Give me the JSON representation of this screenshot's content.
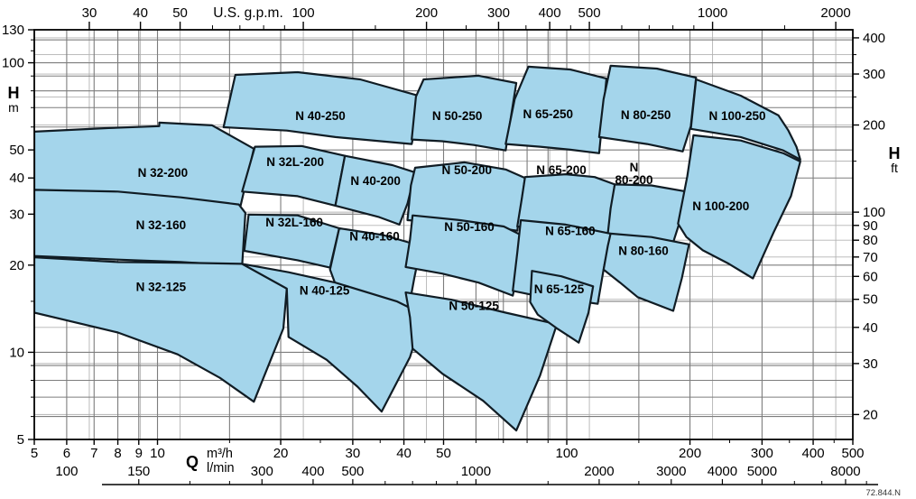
{
  "chart_data": {
    "type": "area",
    "title": "",
    "footnote": "72.844.N",
    "x_scale": {
      "type": "log",
      "unit": "m3/h",
      "min": 5,
      "max": 500
    },
    "y_scale": {
      "type": "log",
      "unit": "m",
      "min": 5,
      "max": 130
    },
    "axes": {
      "top": {
        "label": "U.S. g.p.m.",
        "gpm_per_m3h": 4.40287,
        "labeled_ticks": [
          30,
          40,
          50,
          100,
          200,
          300,
          400,
          500,
          1000,
          2000
        ],
        "minor_ticks": [
          60,
          70,
          80,
          90,
          150,
          250,
          350,
          450,
          600,
          700,
          800,
          900,
          1500
        ]
      },
      "left": {
        "label": "H",
        "sublabel": "m",
        "labeled_ticks": [
          130,
          100,
          50,
          40,
          30,
          20,
          10,
          5
        ],
        "minor_ticks": [
          120,
          110,
          90,
          80,
          70,
          60,
          15,
          9,
          8,
          7,
          6
        ]
      },
      "right": {
        "label": "H",
        "sublabel": "ft",
        "m_per_ft": 0.3048,
        "labeled_ticks": [
          400,
          300,
          200,
          100,
          90,
          80,
          70,
          60,
          50,
          40,
          30,
          20
        ],
        "minor_ticks": [
          350,
          250,
          150
        ]
      },
      "bottom": {
        "label": "Q",
        "unit_line1": "m³/h",
        "unit_line2": "l/min",
        "labeled_ticks": [
          5,
          6,
          7,
          8,
          9,
          10,
          20,
          30,
          40,
          50,
          100,
          200,
          300,
          400,
          500
        ],
        "minor_ticks": [
          15,
          25,
          35,
          45,
          60,
          70,
          80,
          90,
          150,
          250,
          350,
          450
        ]
      },
      "bottom_lmin": {
        "lmin_per_m3h": 16.6667,
        "labeled_ticks": [
          100,
          150,
          300,
          400,
          500,
          1000,
          2000,
          3000,
          4000,
          5000,
          8000
        ],
        "minor_ticks": [
          200,
          250,
          600,
          700,
          800,
          900,
          1500,
          2500,
          6000,
          7000,
          9000
        ]
      }
    },
    "grid": {
      "verticals_m3h": [
        6,
        7,
        8,
        9,
        10,
        15,
        20,
        30,
        40,
        50,
        60,
        70,
        80,
        90,
        100,
        150,
        200,
        300,
        400
      ],
      "verticals_gpm": [
        30,
        40,
        50,
        100,
        200,
        300,
        400,
        500,
        1000,
        2000
      ],
      "horizontals_m": [
        6,
        7,
        8,
        9,
        10,
        15,
        20,
        30,
        40,
        50,
        60,
        70,
        80,
        90,
        100,
        120
      ],
      "horizontals_ft": [
        20,
        30,
        40,
        50,
        60,
        70,
        80,
        90,
        100,
        150,
        200,
        250,
        300,
        350,
        400
      ]
    },
    "colors": {
      "region_fill": "#a4d5eb",
      "region_stroke": "#101c24",
      "grid_major": "#7d7d7d",
      "grid_minor": "#b3b3b3",
      "frame": "#000000",
      "text": "#000000"
    },
    "regions": [
      {
        "label": "N 40-250",
        "label_at": [
          25,
          65.8
        ],
        "poly": [
          [
            14.5,
            59.9
          ],
          [
            15.5,
            90.8
          ],
          [
            22,
            92.8
          ],
          [
            31.3,
            87.6
          ],
          [
            44.2,
            76.4
          ],
          [
            41.8,
            52.4
          ],
          [
            27.2,
            55.4
          ],
          [
            20.7,
            58.3
          ]
        ]
      },
      {
        "label": "N 50-250",
        "label_at": [
          54,
          65.8
        ],
        "poly": [
          [
            41.8,
            54.3
          ],
          [
            42.8,
            76.4
          ],
          [
            44.7,
            87.6
          ],
          [
            60.9,
            90.2
          ],
          [
            75.3,
            85.1
          ],
          [
            70.9,
            49.8
          ],
          [
            59.3,
            52
          ],
          [
            49.6,
            53.6
          ]
        ]
      },
      {
        "label": "N 65-250",
        "label_at": [
          90,
          66.8
        ],
        "poly": [
          [
            70.9,
            52.4
          ],
          [
            74.6,
            74.8
          ],
          [
            80.6,
            96.9
          ],
          [
            102,
            94.8
          ],
          [
            125,
            88.2
          ],
          [
            120,
            48.7
          ],
          [
            102,
            50.1
          ],
          [
            86.1,
            51.3
          ]
        ]
      },
      {
        "label": "N 80-250",
        "label_at": [
          156,
          66.3
        ],
        "poly": [
          [
            120,
            55.4
          ],
          [
            123,
            74.8
          ],
          [
            128,
            97.6
          ],
          [
            166,
            95.5
          ],
          [
            207,
            88.9
          ],
          [
            201,
            60.4
          ],
          [
            192,
            49.4
          ],
          [
            157,
            52.4
          ],
          [
            137,
            53.9
          ]
        ]
      },
      {
        "label": "N 100-250",
        "label_at": [
          261,
          65.8
        ],
        "poly": [
          [
            201,
            59.1
          ],
          [
            207,
            87.6
          ],
          [
            266,
            77
          ],
          [
            329,
            65.8
          ],
          [
            348,
            58.3
          ],
          [
            364,
            51.3
          ],
          [
            372,
            46.3
          ],
          [
            338,
            49.8
          ],
          [
            266,
            55.4
          ]
        ]
      },
      {
        "label": "N 32-200",
        "label_at": [
          10.3,
          41.8
        ],
        "poly": [
          [
            5,
            57.8
          ],
          [
            7.6,
            59.5
          ],
          [
            10.1,
            60.4
          ],
          [
            10.1,
            62.1
          ],
          [
            13.6,
            60.8
          ],
          [
            17.2,
            50.5
          ],
          [
            15.9,
            31.4
          ],
          [
            11.4,
            33.3
          ],
          [
            8,
            34.8
          ],
          [
            5,
            35.4
          ]
        ]
      },
      {
        "label": "N 32L-200",
        "label_at": [
          21.7,
          45.6
        ],
        "poly": [
          [
            16.1,
            35.9
          ],
          [
            17.3,
            51.3
          ],
          [
            22.5,
            51.6
          ],
          [
            28.7,
            47.7
          ],
          [
            27.2,
            32.1
          ],
          [
            22,
            34.6
          ]
        ]
      },
      {
        "label": "N 40-200",
        "label_at": [
          34.1,
          39.2
        ],
        "poly": [
          [
            27.2,
            32.1
          ],
          [
            28.7,
            47.7
          ],
          [
            37.5,
            44.3
          ],
          [
            42.6,
            41.8
          ],
          [
            40.8,
            32.6
          ],
          [
            39,
            27.6
          ],
          [
            34.8,
            29.3
          ]
        ]
      },
      {
        "label": "N 50-200",
        "label_at": [
          57,
          42.8
        ],
        "poly": [
          [
            40.8,
            28.6
          ],
          [
            41.6,
            37.7
          ],
          [
            42.6,
            43.4
          ],
          [
            56.3,
            45.3
          ],
          [
            70.9,
            42.8
          ],
          [
            79.1,
            40
          ],
          [
            75.7,
            26.3
          ],
          [
            64.1,
            27.2
          ],
          [
            52.2,
            28
          ]
        ]
      },
      {
        "label": "N 65-200",
        "label_at": [
          97,
          42.8
        ],
        "poly": [
          [
            75.7,
            27.2
          ],
          [
            77.6,
            33.8
          ],
          [
            79.1,
            40.3
          ],
          [
            99.4,
            41.2
          ],
          [
            117,
            40.3
          ],
          [
            131,
            38
          ],
          [
            126,
            25
          ],
          [
            104,
            25.9
          ],
          [
            88.3,
            26.6
          ]
        ]
      },
      {
        "label": "N 80-200",
        "label_at": [
          146,
          41.5
        ],
        "two_line": true,
        "poly": [
          [
            126,
            25.7
          ],
          [
            128,
            31.4
          ],
          [
            131,
            38
          ],
          [
            161,
            37.7
          ],
          [
            196,
            35.9
          ],
          [
            190,
            29
          ],
          [
            182,
            24
          ],
          [
            153,
            25
          ]
        ]
      },
      {
        "label": "N 100-200",
        "label_at": [
          238,
          32.1
        ],
        "poly": [
          [
            187,
            27.8
          ],
          [
            197,
            40.6
          ],
          [
            204,
            56.2
          ],
          [
            266,
            53.9
          ],
          [
            338,
            48.7
          ],
          [
            372,
            45.6
          ],
          [
            353,
            34.6
          ],
          [
            320,
            25.9
          ],
          [
            285,
            18
          ],
          [
            249,
            20.2
          ],
          [
            215,
            22.5
          ],
          [
            196,
            25
          ]
        ]
      },
      {
        "label": "N 32-160",
        "label_at": [
          10.2,
          27.6
        ],
        "poly": [
          [
            5,
            36.4
          ],
          [
            8,
            35.9
          ],
          [
            11.4,
            34.3
          ],
          [
            15.8,
            32.4
          ],
          [
            16.4,
            30.3
          ],
          [
            16.1,
            19.9
          ],
          [
            11.4,
            20.5
          ],
          [
            8,
            20.9
          ],
          [
            5,
            21.5
          ]
        ]
      },
      {
        "label": "N 32L-160",
        "label_at": [
          21.6,
          28.2
        ],
        "poly": [
          [
            16.3,
            22.4
          ],
          [
            16.7,
            29.9
          ],
          [
            22,
            29.7
          ],
          [
            27.8,
            26.8
          ],
          [
            26.4,
            19.6
          ],
          [
            22,
            20.8
          ]
        ]
      },
      {
        "label": "N 40-160",
        "label_at": [
          33.9,
          25.2
        ],
        "poly": [
          [
            26.4,
            19.3
          ],
          [
            27.8,
            26.8
          ],
          [
            35.6,
            25.4
          ],
          [
            44,
            23.3
          ],
          [
            42.4,
            18
          ],
          [
            41,
            13.9
          ],
          [
            33,
            15.7
          ],
          [
            27.2,
            17.2
          ]
        ]
      },
      {
        "label": "N 50-160",
        "label_at": [
          57.8,
          27.2
        ],
        "poly": [
          [
            40.4,
            19.7
          ],
          [
            41.4,
            24.5
          ],
          [
            42,
            29.7
          ],
          [
            54.9,
            28.6
          ],
          [
            70.2,
            27.2
          ],
          [
            79.1,
            25
          ],
          [
            76.5,
            20
          ],
          [
            73.8,
            15.7
          ],
          [
            60.9,
            17.4
          ],
          [
            49.6,
            18.7
          ]
        ]
      },
      {
        "label": "N 65-160",
        "label_at": [
          102,
          26.3
        ],
        "poly": [
          [
            73.8,
            16.3
          ],
          [
            75.7,
            22.1
          ],
          [
            77.2,
            28.6
          ],
          [
            99.4,
            27.6
          ],
          [
            128,
            25.7
          ],
          [
            123,
            19.3
          ],
          [
            119,
            14.7
          ],
          [
            94.6,
            15.4
          ],
          [
            82.2,
            15.8
          ]
        ]
      },
      {
        "label": "N 80-160",
        "label_at": [
          154,
          22.5
        ],
        "poly": [
          [
            123,
            19.3
          ],
          [
            126,
            23.3
          ],
          [
            128,
            25.7
          ],
          [
            161,
            25
          ],
          [
            199,
            23.6
          ],
          [
            191,
            18
          ],
          [
            182,
            13.9
          ],
          [
            149,
            15.5
          ],
          [
            135,
            17.4
          ]
        ]
      },
      {
        "label": "N 32-125",
        "label_at": [
          10.2,
          16.9
        ],
        "poly": [
          [
            5,
            21.3
          ],
          [
            8,
            20.5
          ],
          [
            11.4,
            20.4
          ],
          [
            16.1,
            20.2
          ],
          [
            20.7,
            16.6
          ],
          [
            20.3,
            12.1
          ],
          [
            17.2,
            6.75
          ],
          [
            14.2,
            8.16
          ],
          [
            11.2,
            9.84
          ],
          [
            8,
            11.7
          ],
          [
            5,
            13.7
          ]
        ]
      },
      {
        "label": "N 40-125",
        "label_at": [
          25.6,
          16.4
        ],
        "poly": [
          [
            16.1,
            20.2
          ],
          [
            20.9,
            18.9
          ],
          [
            27.2,
            17.4
          ],
          [
            38.4,
            15
          ],
          [
            44.7,
            13.5
          ],
          [
            41.4,
            9.63
          ],
          [
            35.3,
            6.24
          ],
          [
            30.8,
            7.61
          ],
          [
            25.9,
            9.42
          ],
          [
            20.9,
            11.3
          ],
          [
            20.7,
            16.6
          ]
        ]
      },
      {
        "label": "N 50-125",
        "label_at": [
          59.3,
          14.5
        ],
        "poly": [
          [
            40.4,
            16.1
          ],
          [
            52.2,
            15.2
          ],
          [
            70.9,
            13.7
          ],
          [
            94.6,
            12.5
          ],
          [
            86.1,
            8.33
          ],
          [
            75.3,
            5.37
          ],
          [
            62.5,
            6.8
          ],
          [
            49.6,
            8.45
          ],
          [
            42,
            10.3
          ],
          [
            41.4,
            13.2
          ]
        ]
      },
      {
        "label": "N 65-125",
        "label_at": [
          95.8,
          16.6
        ],
        "poly": [
          [
            81.4,
            14.9
          ],
          [
            82.2,
            19.1
          ],
          [
            97,
            18.3
          ],
          [
            116,
            16.9
          ],
          [
            113,
            13.7
          ],
          [
            107,
            10.8
          ],
          [
            94.6,
            12.1
          ],
          [
            84.9,
            13.5
          ]
        ]
      }
    ]
  }
}
